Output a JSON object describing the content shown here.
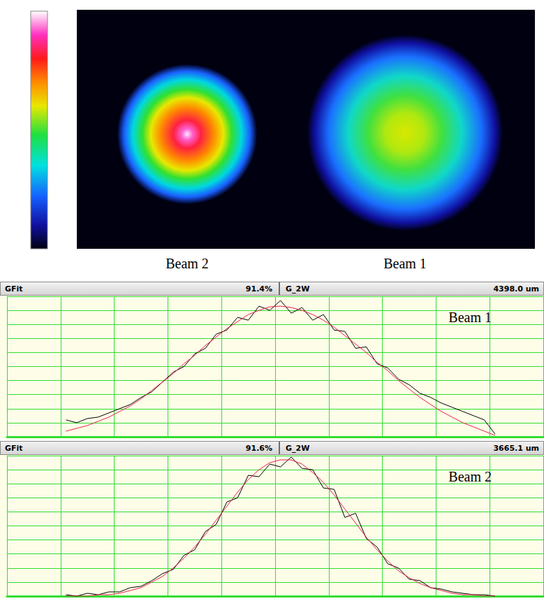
{
  "image": {
    "beam_labels": [
      "Beam 2",
      "Beam 1"
    ]
  },
  "chart_data": [
    {
      "type": "line",
      "title": "Beam 1",
      "header": [
        "GFit",
        "91.4%",
        "G_2W",
        "4398.0 um"
      ],
      "x": [
        1.1,
        1.3,
        1.5,
        1.7,
        1.9,
        2.1,
        2.3,
        2.5,
        2.7,
        2.9,
        3.1,
        3.3,
        3.5,
        3.7,
        3.9,
        4.1,
        4.3,
        4.5,
        4.7,
        4.9,
        5.1,
        5.3,
        5.5,
        5.7,
        5.9,
        6.1,
        6.3,
        6.5,
        6.7,
        6.9,
        7.1,
        7.3,
        7.5,
        7.7,
        7.9,
        8.1,
        8.3,
        8.5,
        8.7,
        8.9,
        9.1
      ],
      "series": [
        {
          "color": "#000000",
          "line_style": "solid",
          "values": [
            1.2,
            1.0,
            1.3,
            1.4,
            1.7,
            2.0,
            2.3,
            2.8,
            3.2,
            3.9,
            4.6,
            5.0,
            5.9,
            6.3,
            7.3,
            7.6,
            8.5,
            8.3,
            9.3,
            9.0,
            9.7,
            8.8,
            9.2,
            8.3,
            8.7,
            7.6,
            7.5,
            6.3,
            6.4,
            5.2,
            4.9,
            4.1,
            3.7,
            3.1,
            2.8,
            2.4,
            2.1,
            1.8,
            1.5,
            1.2,
            0.2
          ]
        },
        {
          "color": "#e8204f",
          "line_style": "solid",
          "values": [
            0.4,
            0.6,
            0.8,
            1.1,
            1.4,
            1.8,
            2.2,
            2.7,
            3.3,
            3.9,
            4.5,
            5.2,
            5.8,
            6.5,
            7.1,
            7.7,
            8.2,
            8.7,
            9.0,
            9.25,
            9.3,
            9.2,
            9.0,
            8.7,
            8.3,
            7.8,
            7.2,
            6.6,
            6.0,
            5.3,
            4.7,
            4.0,
            3.4,
            2.8,
            2.3,
            1.8,
            1.4,
            1.0,
            0.7,
            0.4,
            0.1
          ]
        }
      ],
      "xlim": [
        0,
        10
      ],
      "xticks": [
        0,
        1,
        2,
        3,
        4,
        5,
        6,
        7,
        8,
        9,
        10
      ],
      "ylim": [
        0,
        10
      ],
      "yticks": [
        0,
        1,
        2,
        3,
        4,
        5,
        6,
        7,
        8,
        9,
        10
      ],
      "grid": true,
      "tick_labels": false
    },
    {
      "type": "line",
      "title": "Beam 2",
      "header": [
        "GFit",
        "91.6%",
        "G_2W",
        "3665.1 um"
      ],
      "x": [
        1.1,
        1.3,
        1.5,
        1.7,
        1.9,
        2.1,
        2.3,
        2.5,
        2.7,
        2.9,
        3.1,
        3.3,
        3.5,
        3.7,
        3.9,
        4.1,
        4.3,
        4.5,
        4.7,
        4.9,
        5.1,
        5.3,
        5.5,
        5.7,
        5.9,
        6.1,
        6.3,
        6.5,
        6.7,
        6.9,
        7.1,
        7.3,
        7.5,
        7.7,
        7.9,
        8.1,
        8.3,
        8.5,
        8.7,
        8.9,
        9.1
      ],
      "series": [
        {
          "color": "#000000",
          "line_style": "solid",
          "values": [
            0.1,
            0.0,
            0.2,
            0.1,
            0.3,
            0.3,
            0.6,
            0.7,
            1.1,
            1.6,
            1.9,
            2.9,
            3.3,
            4.6,
            5.1,
            6.7,
            7.0,
            8.6,
            8.5,
            9.4,
            9.2,
            9.9,
            9.1,
            9.0,
            7.7,
            7.6,
            5.6,
            5.9,
            4.1,
            3.5,
            2.3,
            2.0,
            1.2,
            1.1,
            0.6,
            0.5,
            0.3,
            0.2,
            0.1,
            0.1,
            0.0
          ]
        },
        {
          "color": "#e8204f",
          "line_style": "solid",
          "values": [
            0.0,
            0.0,
            0.0,
            0.1,
            0.1,
            0.2,
            0.4,
            0.6,
            1.0,
            1.4,
            2.0,
            2.7,
            3.5,
            4.4,
            5.4,
            6.4,
            7.4,
            8.3,
            9.0,
            9.5,
            9.7,
            9.7,
            9.4,
            8.8,
            8.1,
            7.2,
            6.2,
            5.2,
            4.2,
            3.3,
            2.5,
            1.8,
            1.3,
            0.9,
            0.6,
            0.4,
            0.2,
            0.1,
            0.1,
            0.0,
            0.0
          ]
        }
      ],
      "xlim": [
        0,
        10
      ],
      "xticks": [
        0,
        1,
        2,
        3,
        4,
        5,
        6,
        7,
        8,
        9,
        10
      ],
      "ylim": [
        0,
        10
      ],
      "yticks": [
        0,
        1,
        2,
        3,
        4,
        5,
        6,
        7,
        8,
        9,
        10
      ],
      "grid": true,
      "tick_labels": false
    }
  ]
}
